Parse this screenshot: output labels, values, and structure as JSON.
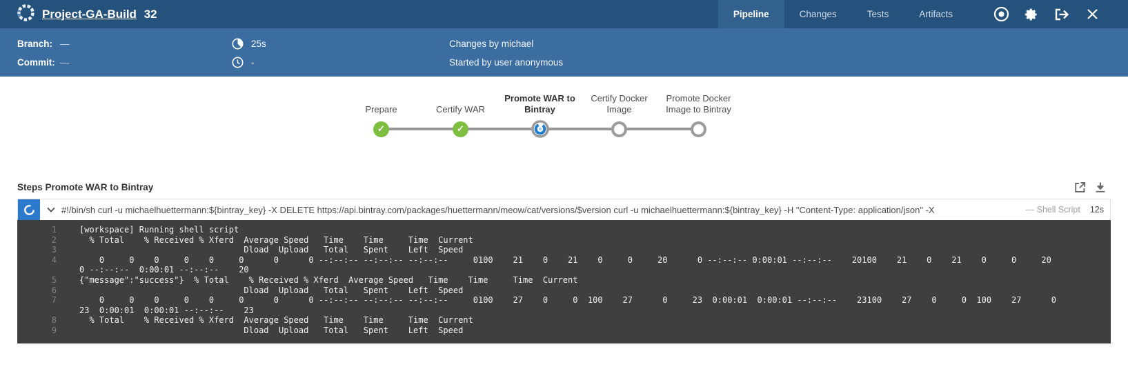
{
  "header": {
    "title": "Project-GA-Build",
    "build_number": "32",
    "tabs": [
      {
        "label": "Pipeline",
        "active": true
      },
      {
        "label": "Changes",
        "active": false
      },
      {
        "label": "Tests",
        "active": false
      },
      {
        "label": "Artifacts",
        "active": false
      }
    ],
    "icons": [
      "stop-build",
      "settings",
      "go-to-classic",
      "close"
    ]
  },
  "run_info": {
    "branch_label": "Branch:",
    "branch_value": "—",
    "commit_label": "Commit:",
    "commit_value": "—",
    "duration": "25s",
    "start_time": "-",
    "changes_by": "Changes by michael",
    "started_by": "Started by user anonymous"
  },
  "pipeline": {
    "stages": [
      {
        "label_lines": [
          "Prepare"
        ],
        "status": "success",
        "active": false
      },
      {
        "label_lines": [
          "Certify WAR"
        ],
        "status": "success",
        "active": false
      },
      {
        "label_lines": [
          "Promote WAR to",
          "Bintray"
        ],
        "status": "running",
        "active": true
      },
      {
        "label_lines": [
          "Certify Docker",
          "Image"
        ],
        "status": "pending",
        "active": false
      },
      {
        "label_lines": [
          "Promote Docker",
          "Image to Bintray"
        ],
        "status": "pending",
        "active": false
      }
    ]
  },
  "steps": {
    "title": "Steps Promote WAR to Bintray",
    "step": {
      "command": "#!/bin/sh curl -u michaelhuettermann:${bintray_key} -X DELETE https://api.bintray.com/packages/huettermann/meow/cat/versions/$version curl -u michaelhuettermann:${bintray_key} -H \"Content-Type: application/json\" -X",
      "type_label": "— Shell Script",
      "duration": "12s",
      "status": "running"
    },
    "console": {
      "lines": [
        {
          "n": "1",
          "t": "[workspace] Running shell script"
        },
        {
          "n": "2",
          "t": "  % Total    % Received % Xferd  Average Speed   Time    Time     Time  Current"
        },
        {
          "n": "3",
          "t": "                                 Dload  Upload   Total   Spent    Left  Speed"
        },
        {
          "n": "4",
          "t": "    0     0    0     0    0     0      0      0 --:--:-- --:--:-- --:--:--     0100    21    0    21    0     0     20      0 --:--:-- 0:00:01 --:--:--    20100    21    0    21    0     0     20"
        },
        {
          "n": "",
          "t": "0 --:--:--  0:00:01 --:--:--    20"
        },
        {
          "n": "5",
          "t": "{\"message\":\"success\"}  % Total    % Received % Xferd  Average Speed   Time    Time     Time  Current"
        },
        {
          "n": "6",
          "t": "                                 Dload  Upload   Total   Spent    Left  Speed"
        },
        {
          "n": "7",
          "t": "    0     0    0     0    0     0      0      0 --:--:-- --:--:-- --:--:--     0100    27    0     0  100    27      0     23  0:00:01  0:00:01 --:--:--    23100    27    0     0  100    27      0"
        },
        {
          "n": "",
          "t": "23  0:00:01  0:00:01 --:--:--    23"
        },
        {
          "n": "8",
          "t": "  % Total    % Received % Xferd  Average Speed   Time    Time     Time  Current"
        },
        {
          "n": "9",
          "t": "                                 Dload  Upload   Total   Spent    Left  Speed"
        }
      ]
    }
  },
  "colors": {
    "header_bg": "#24527C",
    "active_tab_bg": "#32618E",
    "subbar_bg": "#3B6DA1",
    "success_green": "#7EBE41",
    "running_blue": "#1D7DCF",
    "pending_gray": "#9B9B9B",
    "console_bg": "#3F3F3F",
    "step_box_blue": "#2D79CC"
  }
}
